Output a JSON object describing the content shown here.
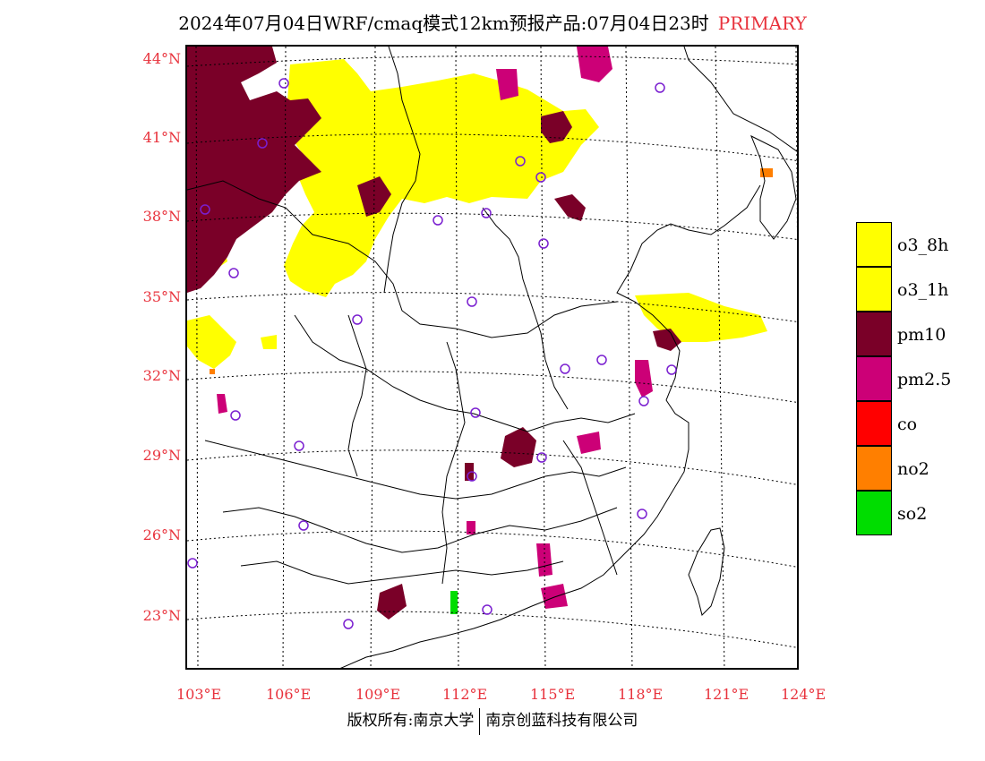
{
  "title": {
    "text": "2024年07月04日WRF/cmaq模式12km预报产品:07月04日23时",
    "tag": "PRIMARY"
  },
  "colors": {
    "accent": "#e8323c",
    "o3_8h": "#ffff00",
    "o3_1h": "#ffff00",
    "pm10": "#7a0028",
    "pm2_5": "#cc0077",
    "co": "#ff0000",
    "no2": "#ff7f00",
    "so2": "#00dd00",
    "station_ring": "#7a1fd0"
  },
  "axes": {
    "latitudes": [
      "44°N",
      "41°N",
      "38°N",
      "35°N",
      "32°N",
      "29°N",
      "26°N",
      "23°N"
    ],
    "longitudes": [
      "103°E",
      "106°E",
      "109°E",
      "112°E",
      "115°E",
      "118°E",
      "121°E",
      "124°E"
    ]
  },
  "legend": [
    {
      "label": "o3_8h",
      "color": "#ffff00"
    },
    {
      "label": "o3_1h",
      "color": "#ffff00"
    },
    {
      "label": "pm10",
      "color": "#7a0028"
    },
    {
      "label": "pm2.5",
      "color": "#cc0077"
    },
    {
      "label": "co",
      "color": "#ff0000"
    },
    {
      "label": "no2",
      "color": "#ff7f00"
    },
    {
      "label": "so2",
      "color": "#00dd00"
    }
  ],
  "footer": {
    "left": "版权所有:南京大学",
    "right": "南京创蓝科技有限公司"
  }
}
